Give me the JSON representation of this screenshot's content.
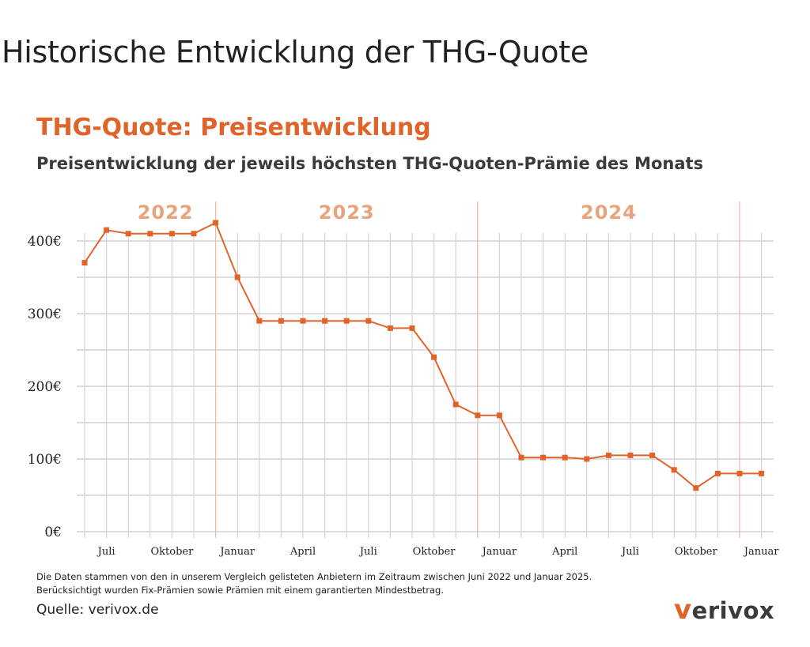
{
  "page_title": "Historische Entwicklung der THG-Quote",
  "chart_data": {
    "type": "line",
    "title": "THG-Quote: Preisentwicklung",
    "subtitle": "Preisentwicklung der jeweils höchsten THG-Quoten-Prämie des Monats",
    "x": [
      "Jun 2022",
      "Jul 2022",
      "Aug 2022",
      "Sep 2022",
      "Okt 2022",
      "Nov 2022",
      "Dez 2022",
      "Jan 2023",
      "Feb 2023",
      "Mär 2023",
      "Apr 2023",
      "Mai 2023",
      "Jun 2023",
      "Jul 2023",
      "Aug 2023",
      "Sep 2023",
      "Okt 2023",
      "Nov 2023",
      "Dez 2023",
      "Jan 2024",
      "Feb 2024",
      "Mär 2024",
      "Apr 2024",
      "Mai 2024",
      "Jun 2024",
      "Jul 2024",
      "Aug 2024",
      "Sep 2024",
      "Okt 2024",
      "Nov 2024",
      "Dez 2024",
      "Jan 2025"
    ],
    "values": [
      370,
      415,
      410,
      410,
      410,
      410,
      425,
      350,
      290,
      290,
      290,
      290,
      290,
      290,
      280,
      280,
      240,
      175,
      160,
      160,
      102,
      102,
      102,
      100,
      105,
      105,
      105,
      85,
      60,
      80,
      80,
      80
    ],
    "ylim": [
      0,
      420
    ],
    "yticks": [
      {
        "v": 0,
        "label": "0€"
      },
      {
        "v": 100,
        "label": "100€"
      },
      {
        "v": 200,
        "label": "200€"
      },
      {
        "v": 300,
        "label": "300€"
      },
      {
        "v": 400,
        "label": "400€"
      }
    ],
    "xticks": [
      {
        "i": 1,
        "label": "Juli"
      },
      {
        "i": 4,
        "label": "Oktober"
      },
      {
        "i": 7,
        "label": "Januar"
      },
      {
        "i": 10,
        "label": "April"
      },
      {
        "i": 13,
        "label": "Juli"
      },
      {
        "i": 16,
        "label": "Oktober"
      },
      {
        "i": 19,
        "label": "Januar"
      },
      {
        "i": 22,
        "label": "April"
      },
      {
        "i": 25,
        "label": "Juli"
      },
      {
        "i": 28,
        "label": "Oktober"
      },
      {
        "i": 31,
        "label": "Januar"
      }
    ],
    "years": [
      {
        "label": "2022",
        "center": 3.7
      },
      {
        "label": "2023",
        "center": 12.0
      },
      {
        "label": "2024",
        "center": 24.0
      }
    ],
    "year_separators": [
      6,
      18,
      30
    ],
    "grid": true,
    "line_color": "#e0642a",
    "year_color": "#eaa27c"
  },
  "footnote": [
    "Die Daten stammen von den in unserem Vergleich gelisteten Anbietern im Zeitraum zwischen Juni 2022 und Januar 2025.",
    "Berücksichtigt wurden Fix-Prämien sowie Prämien mit einem garantierten Mindestbetrag."
  ],
  "source": "Quelle: verivox.de",
  "logo_text": "verivox"
}
